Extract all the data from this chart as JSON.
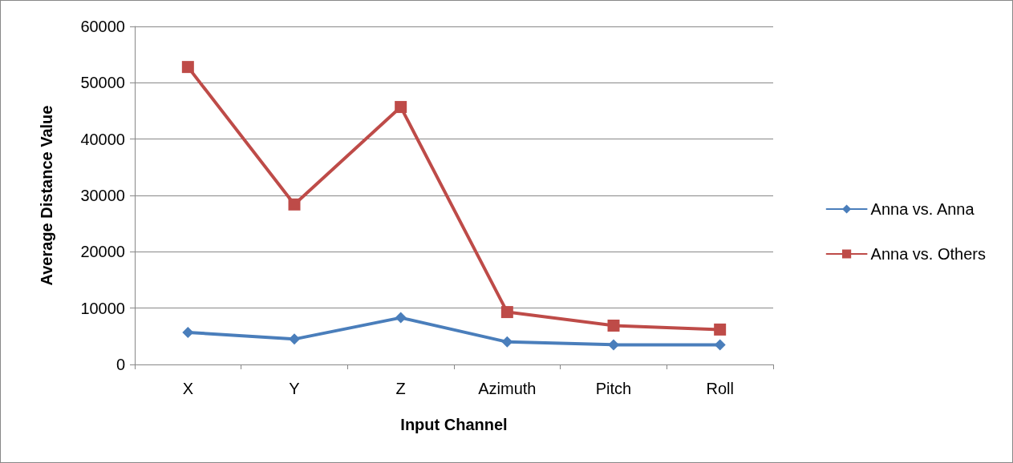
{
  "chart_data": {
    "type": "line",
    "xlabel": "Input Channel",
    "ylabel": "Average Distance Value",
    "categories": [
      "X",
      "Y",
      "Z",
      "Azimuth",
      "Pitch",
      "Roll"
    ],
    "series": [
      {
        "name": "Anna vs. Anna",
        "color": "#4a7ebb",
        "marker": "diamond",
        "values": [
          5700,
          4500,
          8300,
          4000,
          3500,
          3500
        ]
      },
      {
        "name": "Anna vs. Others",
        "color": "#be4b48",
        "marker": "square",
        "values": [
          52800,
          28400,
          45700,
          9300,
          6900,
          6200
        ]
      }
    ],
    "ylim": [
      0,
      60000
    ],
    "yticks": [
      0,
      10000,
      20000,
      30000,
      40000,
      50000,
      60000
    ],
    "grid": "y",
    "legend": "right",
    "line_style": "solid"
  }
}
